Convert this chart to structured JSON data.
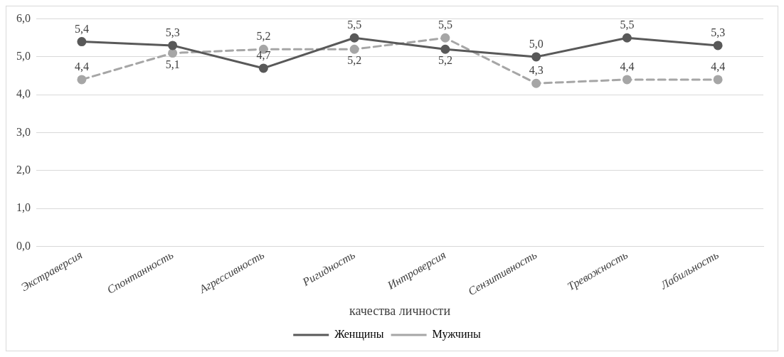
{
  "chart_data": {
    "type": "line",
    "xlabel": "качества личности",
    "categories": [
      "Экстраверсия",
      "Спонтанность",
      "Агрессивность",
      "Ригидность",
      "Интроверсия",
      "Сензитивность",
      "Тревожность",
      "Лабильность"
    ],
    "series": [
      {
        "name": "Женщины",
        "color": "#595959",
        "values": [
          5.4,
          5.3,
          4.7,
          5.5,
          5.2,
          5.0,
          5.5,
          5.3
        ],
        "value_labels": [
          "5,4",
          "5,3",
          "4,7",
          "5,5",
          "5,2",
          "5,0",
          "5,5",
          "5,3"
        ],
        "line_style": "solid"
      },
      {
        "name": "Мужчины",
        "color": "#a6a6a6",
        "values": [
          4.4,
          5.1,
          5.2,
          5.2,
          5.5,
          4.3,
          4.4,
          4.4
        ],
        "value_labels": [
          "4,4",
          "5,1",
          "5,2",
          "5,2",
          "5,5",
          "4,3",
          "4,4",
          "4,4"
        ],
        "line_style": "dashed"
      }
    ],
    "ylim": [
      0,
      6
    ],
    "yticks": [
      {
        "value": 0,
        "label": "0,0"
      },
      {
        "value": 1,
        "label": "1,0"
      },
      {
        "value": 2,
        "label": "2,0"
      },
      {
        "value": 3,
        "label": "3,0"
      },
      {
        "value": 4,
        "label": "4,0"
      },
      {
        "value": 5,
        "label": "5,0"
      },
      {
        "value": 6,
        "label": "6,0"
      }
    ],
    "grid": "y",
    "legend": "bottom",
    "marker": "circle"
  }
}
